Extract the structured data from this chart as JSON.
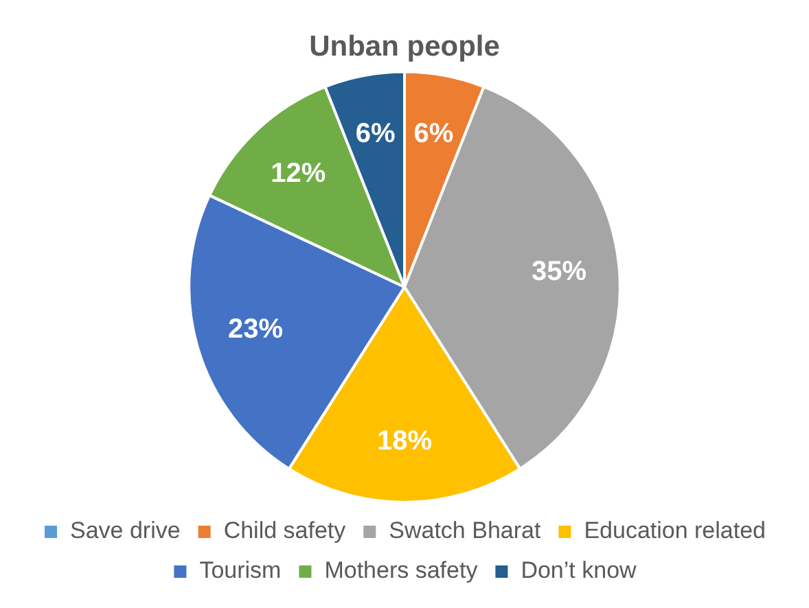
{
  "chart_data": {
    "type": "pie",
    "title": "Unban people",
    "categories": [
      "Save drive",
      "Child safety",
      "Swatch Bharat",
      "Education related",
      "Tourism",
      "Mothers safety",
      "Don’t know"
    ],
    "values": [
      0,
      6,
      35,
      18,
      23,
      12,
      6
    ],
    "value_labels": [
      null,
      "6%",
      "35%",
      "18%",
      "23%",
      "12%",
      "6%"
    ],
    "colors": [
      "#5b9bd5",
      "#ed7d31",
      "#a5a5a5",
      "#ffc000",
      "#4472c4",
      "#70ad47",
      "#255e91"
    ],
    "legend": "bottom"
  }
}
